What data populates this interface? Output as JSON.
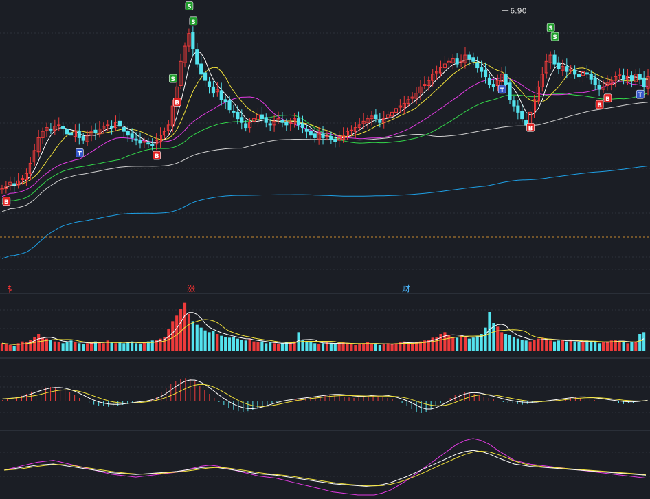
{
  "colors": {
    "background": "#1b1e25",
    "grid": "#2c313b",
    "divider": "#3a404c",
    "dashed_line": "#c98a2e",
    "up": "#ee3b3b",
    "down": "#54e3ee",
    "ma5": "#ffffff",
    "ma10": "#f2e23a",
    "ma20": "#e33be3",
    "ma30": "#33d74a",
    "ma60": "#d0d0d0",
    "ma120": "#1ea0e6",
    "marker_b": "#e22323",
    "marker_s": "#1f9e2b",
    "marker_t": "#3456c9",
    "label_red": "#ff3333",
    "label_blue": "#4db8ff"
  },
  "price_panel": {
    "peak_label": "6.90",
    "markers": [
      {
        "letter": "B",
        "type": "b",
        "index": 1
      },
      {
        "letter": "T",
        "type": "t",
        "index": 19
      },
      {
        "letter": "B",
        "type": "b",
        "index": 38
      },
      {
        "letter": "S",
        "type": "s",
        "index": 42
      },
      {
        "letter": "B",
        "type": "b",
        "index": 43
      },
      {
        "letter": "S",
        "type": "s",
        "index": 47
      },
      {
        "letter": "S",
        "type": "s",
        "index": 46
      },
      {
        "letter": "T",
        "type": "t",
        "index": 123
      },
      {
        "letter": "B",
        "type": "b",
        "index": 130
      },
      {
        "letter": "S",
        "type": "s",
        "index": 136
      },
      {
        "letter": "S",
        "type": "s",
        "index": 135
      },
      {
        "letter": "B",
        "type": "b",
        "index": 147
      },
      {
        "letter": "B",
        "type": "b",
        "index": 149
      },
      {
        "letter": "T",
        "type": "t",
        "index": 157
      }
    ]
  },
  "volume_panel": {
    "labels": [
      {
        "text": "$",
        "color_key": "label_red"
      },
      {
        "text": "涨",
        "color_key": "label_red"
      },
      {
        "text": "财",
        "color_key": "label_blue"
      }
    ]
  },
  "chart_data": [
    {
      "type": "candlestick",
      "title": "",
      "peak_value": 6.9,
      "series": [
        {
          "name": "",
          "values": [
            5.5,
            5.52,
            5.55,
            5.53,
            5.56,
            5.58,
            5.62,
            5.7,
            5.8,
            5.9,
            5.95,
            5.98,
            5.96,
            5.99,
            6.0,
            5.97,
            5.93,
            5.92,
            5.95,
            5.9,
            5.88,
            5.92,
            5.95,
            5.94,
            5.97,
            5.99,
            6.0,
            5.98,
            6.02,
            5.99,
            5.95,
            5.92,
            5.9,
            5.88,
            5.86,
            5.87,
            5.85,
            5.84,
            5.88,
            5.92,
            5.95,
            6.0,
            6.15,
            6.3,
            6.5,
            6.62,
            6.72,
            6.6,
            6.48,
            6.4,
            6.35,
            6.3,
            6.25,
            6.28,
            6.2,
            6.18,
            6.12,
            6.1,
            6.05,
            6.02,
            5.98,
            6.02,
            6.05,
            6.08,
            6.05,
            6.02,
            6.0,
            6.03,
            6.05,
            6.02,
            6.0,
            6.02,
            6.05,
            6.0,
            5.98,
            5.95,
            5.92,
            5.9,
            5.93,
            5.9,
            5.92,
            5.89,
            5.87,
            5.9,
            5.92,
            5.95,
            5.96,
            5.98,
            6.0,
            6.03,
            6.05,
            6.07,
            6.05,
            6.02,
            6.05,
            6.08,
            6.1,
            6.13,
            6.15,
            6.17,
            6.2,
            6.22,
            6.25,
            6.3,
            6.32,
            6.35,
            6.4,
            6.42,
            6.45,
            6.48,
            6.5,
            6.52,
            6.48,
            6.5,
            6.55,
            6.52,
            6.5,
            6.45,
            6.42,
            6.38,
            6.32,
            6.3,
            6.35,
            6.4,
            6.32,
            6.2,
            6.15,
            6.1,
            6.05,
            6.0,
            6.1,
            6.2,
            6.3,
            6.4,
            6.5,
            6.55,
            6.48,
            6.44,
            6.46,
            6.42,
            6.44,
            6.4,
            6.38,
            6.42,
            6.4,
            6.36,
            6.32,
            6.28,
            6.3,
            6.33,
            6.35,
            6.38,
            6.4,
            6.36,
            6.38,
            6.35,
            6.4,
            6.36,
            6.3,
            6.38
          ]
        }
      ]
    },
    {
      "type": "bar",
      "title": "",
      "series": [
        {
          "name": "",
          "values": [
            0.8,
            0.7,
            0.6,
            0.5,
            0.8,
            1.0,
            0.9,
            1.2,
            1.5,
            1.8,
            1.4,
            1.3,
            1.2,
            1.0,
            0.9,
            0.8,
            1.0,
            1.1,
            0.9,
            0.8,
            0.7,
            0.8,
            0.9,
            1.0,
            0.9,
            0.8,
            1.1,
            0.9,
            0.8,
            0.9,
            0.8,
            0.9,
            1.0,
            0.8,
            0.7,
            0.9,
            1.0,
            1.1,
            1.2,
            1.3,
            1.5,
            2.4,
            3.2,
            3.8,
            4.5,
            5.2,
            4.0,
            3.2,
            2.8,
            2.5,
            2.2,
            2.0,
            2.1,
            1.8,
            1.6,
            1.5,
            1.4,
            1.5,
            1.3,
            1.2,
            1.1,
            1.3,
            1.0,
            0.9,
            1.0,
            0.8,
            0.9,
            0.8,
            0.7,
            0.8,
            0.9,
            0.8,
            1.0,
            2.0,
            1.2,
            1.0,
            0.9,
            0.8,
            0.7,
            0.8,
            0.9,
            0.8,
            0.7,
            0.8,
            0.9,
            0.8,
            0.7,
            0.6,
            0.7,
            0.8,
            0.9,
            0.8,
            0.7,
            0.6,
            0.7,
            0.8,
            0.7,
            0.8,
            0.9,
            1.0,
            0.9,
            0.8,
            0.9,
            1.0,
            1.1,
            1.2,
            1.4,
            1.5,
            1.8,
            2.0,
            1.7,
            1.5,
            1.4,
            1.6,
            1.5,
            1.3,
            1.4,
            1.6,
            1.8,
            2.5,
            4.2,
            3.0,
            2.6,
            2.0,
            1.8,
            1.7,
            1.5,
            1.3,
            1.2,
            1.1,
            1.0,
            1.2,
            1.3,
            1.4,
            1.3,
            1.1,
            1.0,
            1.1,
            1.2,
            1.0,
            1.1,
            1.0,
            0.9,
            1.0,
            1.1,
            1.0,
            0.9,
            0.8,
            0.9,
            1.0,
            1.1,
            1.2,
            1.0,
            0.9,
            0.8,
            0.9,
            1.0,
            1.8,
            2.0
          ]
        }
      ]
    },
    {
      "type": "bar",
      "title": "",
      "series": [
        {
          "name": "",
          "values": [
            0.02,
            0.05,
            0.08,
            0.12,
            0.18,
            0.25,
            0.33,
            0.4,
            0.45,
            0.48,
            0.5,
            0.48,
            0.44,
            0.38,
            0.3,
            0.2,
            0.1,
            0.0,
            -0.08,
            -0.14,
            -0.18,
            -0.2,
            -0.22,
            -0.2,
            -0.18,
            -0.15,
            -0.12,
            -0.1,
            -0.08,
            -0.05,
            -0.02,
            0.05,
            0.15,
            0.3,
            0.45,
            0.6,
            0.72,
            0.8,
            0.82,
            0.78,
            0.7,
            0.55,
            0.4,
            0.25,
            0.1,
            -0.05,
            -0.15,
            -0.25,
            -0.32,
            -0.38,
            -0.4,
            -0.38,
            -0.34,
            -0.28,
            -0.22,
            -0.15,
            -0.1,
            -0.05,
            -0.02,
            0.0,
            0.02,
            0.05,
            0.08,
            0.1,
            0.12,
            0.15,
            0.18,
            0.2,
            0.22,
            0.2,
            0.18,
            0.15,
            0.12,
            0.1,
            0.12,
            0.15,
            0.18,
            0.2,
            0.18,
            0.15,
            0.1,
            0.05,
            0.0,
            -0.08,
            -0.18,
            -0.3,
            -0.4,
            -0.45,
            -0.4,
            -0.3,
            -0.2,
            -0.1,
            0.0,
            0.1,
            0.2,
            0.25,
            0.3,
            0.28,
            0.25,
            0.2,
            0.15,
            0.1,
            0.05,
            0.0,
            -0.05,
            -0.08,
            -0.1,
            -0.12,
            -0.14,
            -0.12,
            -0.1,
            -0.08,
            -0.05,
            -0.02,
            0.0,
            0.02,
            0.05,
            0.08,
            0.1,
            0.12,
            0.1,
            0.08,
            0.05,
            0.02,
            0.0,
            -0.02,
            -0.05,
            -0.08,
            -0.1,
            -0.12,
            -0.1,
            -0.08,
            -0.05,
            -0.02,
            0.0
          ]
        }
      ]
    },
    {
      "type": "line",
      "title": "",
      "series": [
        {
          "name": "",
          "values": [
            0.4,
            0.42,
            0.44,
            0.46,
            0.48,
            0.49,
            0.5,
            0.48,
            0.46,
            0.44,
            0.42,
            0.4,
            0.38,
            0.36,
            0.35,
            0.34,
            0.33,
            0.34,
            0.35,
            0.36,
            0.37,
            0.38,
            0.4,
            0.42,
            0.44,
            0.45,
            0.44,
            0.42,
            0.4,
            0.38,
            0.36,
            0.34,
            0.33,
            0.32,
            0.3,
            0.28,
            0.26,
            0.24,
            0.22,
            0.2,
            0.18,
            0.17,
            0.16,
            0.15,
            0.14,
            0.15,
            0.17,
            0.2,
            0.25,
            0.3,
            0.36,
            0.42,
            0.48,
            0.54,
            0.6,
            0.66,
            0.7,
            0.72,
            0.7,
            0.66,
            0.6,
            0.55,
            0.5,
            0.48,
            0.46,
            0.45,
            0.44,
            0.43,
            0.42,
            0.41,
            0.4,
            0.39,
            0.38,
            0.37,
            0.36,
            0.35,
            0.34,
            0.33,
            0.32
          ]
        }
      ]
    }
  ]
}
